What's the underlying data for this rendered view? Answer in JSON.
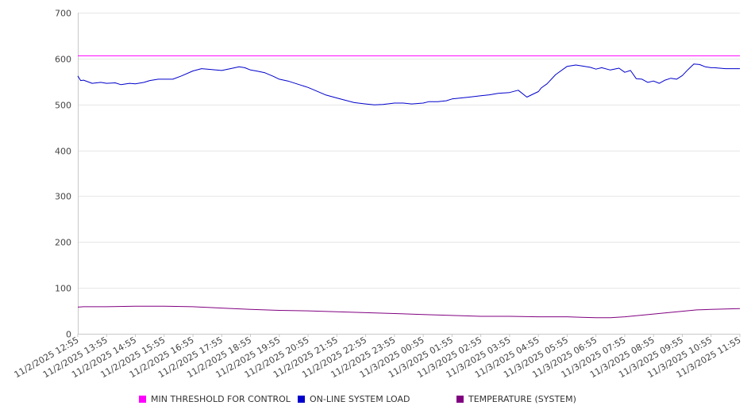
{
  "chart_data": {
    "type": "line",
    "title": "",
    "xlabel": "",
    "ylabel": "",
    "ylim": [
      0,
      700
    ],
    "yticks": [
      0,
      100,
      200,
      300,
      400,
      500,
      600,
      700
    ],
    "xlim": [
      0,
      23
    ],
    "x_tick_labels": [
      "11/2/2025 12:55",
      "11/2/2025 13:55",
      "11/2/2025 14:55",
      "11/2/2025 15:55",
      "11/2/2025 16:55",
      "11/2/2025 17:55",
      "11/2/2025 18:55",
      "11/2/2025 19:55",
      "11/2/2025 20:55",
      "11/2/2025 21:55",
      "11/2/2025 22:55",
      "11/2/2025 23:55",
      "11/3/2025 00:55",
      "11/3/2025 01:55",
      "11/3/2025 02:55",
      "11/3/2025 03:55",
      "11/3/2025 04:55",
      "11/3/2025 05:55",
      "11/3/2025 06:55",
      "11/3/2025 07:55",
      "11/3/2025 08:55",
      "11/3/2025 09:55",
      "11/3/2025 10:55",
      "11/3/2025 11:55"
    ],
    "grid": true,
    "legend_position": "bottom",
    "series": [
      {
        "name": "MIN THRESHOLD FOR CONTROL",
        "color": "#ff00ff",
        "x": [
          0,
          23
        ],
        "values": [
          606,
          606
        ]
      },
      {
        "name": "ON-LINE SYSTEM LOAD",
        "color": "#0000cc",
        "x": [
          0,
          0.1,
          0.2,
          0.5,
          0.8,
          1.0,
          1.3,
          1.5,
          1.8,
          2.0,
          2.3,
          2.5,
          2.8,
          3.0,
          3.3,
          3.6,
          4.0,
          4.3,
          4.5,
          4.8,
          5.0,
          5.3,
          5.6,
          5.8,
          6.0,
          6.2,
          6.5,
          6.8,
          7.0,
          7.3,
          7.6,
          8.0,
          8.3,
          8.6,
          9.0,
          9.3,
          9.6,
          10.0,
          10.3,
          10.6,
          11.0,
          11.3,
          11.6,
          12.0,
          12.2,
          12.5,
          12.8,
          13.0,
          13.3,
          13.6,
          14.0,
          14.3,
          14.6,
          15.0,
          15.3,
          15.6,
          15.8,
          16.0,
          16.1,
          16.3,
          16.6,
          17.0,
          17.3,
          17.5,
          17.8,
          18.0,
          18.2,
          18.5,
          18.8,
          19.0,
          19.2,
          19.4,
          19.6,
          19.8,
          20.0,
          20.2,
          20.4,
          20.6,
          20.8,
          21.0,
          21.2,
          21.4,
          21.6,
          21.8,
          22.0,
          22.1,
          22.3,
          22.5,
          22.8,
          23.0
        ],
        "values": [
          562,
          552,
          553,
          546,
          548,
          546,
          547,
          543,
          546,
          545,
          548,
          552,
          555,
          555,
          555,
          562,
          573,
          578,
          577,
          575,
          574,
          578,
          582,
          580,
          575,
          573,
          569,
          561,
          555,
          551,
          545,
          537,
          529,
          521,
          514,
          509,
          504,
          501,
          499,
          500,
          503,
          503,
          501,
          503,
          506,
          506,
          508,
          512,
          514,
          516,
          519,
          521,
          524,
          526,
          531,
          516,
          522,
          528,
          536,
          545,
          565,
          583,
          586,
          584,
          581,
          577,
          580,
          575,
          579,
          570,
          574,
          556,
          555,
          548,
          551,
          546,
          553,
          557,
          555,
          563,
          576,
          588,
          587,
          582,
          580,
          580,
          579,
          578,
          578,
          578
        ]
      },
      {
        "name": "TEMPERATURE (SYSTEM)",
        "color": "#800080",
        "x": [
          0,
          0.2,
          1.0,
          2.0,
          3.0,
          4.0,
          5.0,
          6.0,
          7.0,
          8.0,
          9.0,
          10.0,
          11.0,
          12.0,
          13.0,
          14.0,
          15.0,
          16.0,
          17.0,
          17.5,
          18.0,
          18.5,
          19.0,
          19.5,
          20.0,
          20.5,
          21.0,
          21.5,
          22.0,
          22.5,
          23.0
        ],
        "values": [
          58,
          59,
          59,
          60,
          60,
          59,
          56,
          53,
          51,
          50,
          48,
          46,
          44,
          42,
          40,
          38,
          38,
          37,
          37,
          36,
          35,
          35,
          37,
          40,
          43,
          46,
          49,
          52,
          53,
          54,
          55
        ]
      }
    ]
  }
}
